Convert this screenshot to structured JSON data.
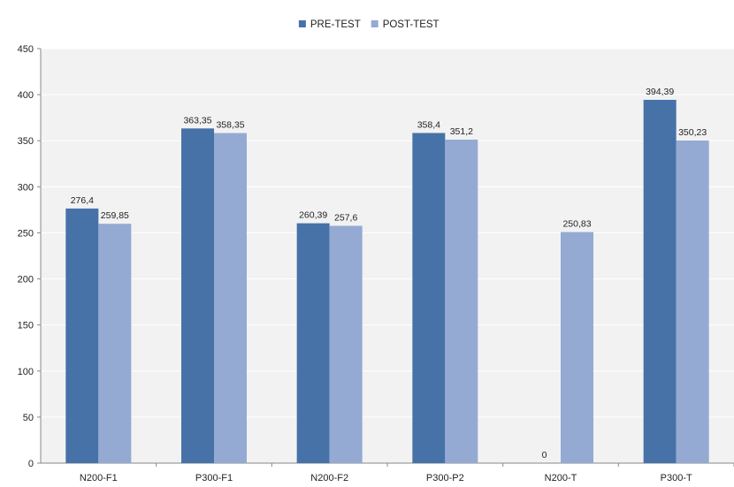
{
  "chart_data": {
    "type": "bar",
    "categories": [
      "N200-F1",
      "P300-F1",
      "N200-F2",
      "P300-P2",
      "N200-T",
      "P300-T"
    ],
    "series": [
      {
        "name": "PRE-TEST",
        "color": "#4672A8",
        "values": [
          276.4,
          363.35,
          260.39,
          358.4,
          0,
          394.39
        ],
        "labels": [
          "276,4",
          "363,35",
          "260,39",
          "358,4",
          "0",
          "394,39"
        ]
      },
      {
        "name": "POST-TEST",
        "color": "#94AAD3",
        "values": [
          259.85,
          358.35,
          257.6,
          351.2,
          250.83,
          350.23
        ],
        "labels": [
          "259,85",
          "358,35",
          "257,6",
          "351,2",
          "250,83",
          "350,23"
        ]
      }
    ],
    "ylim": [
      0,
      450
    ],
    "yticks": [
      0,
      50,
      100,
      150,
      200,
      250,
      300,
      350,
      400,
      450
    ],
    "title": "",
    "xlabel": "",
    "ylabel": "",
    "grid": true,
    "legend_position": "top-center",
    "background": "#F2F2F2",
    "gridline_color": "#FFFFFF"
  }
}
